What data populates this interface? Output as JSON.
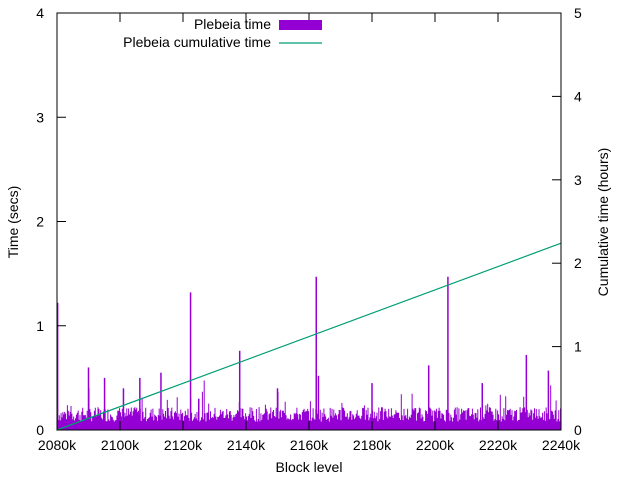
{
  "chart_data": {
    "type": "bar+line",
    "xlabel": "Block level",
    "ylabel": "Time (secs)",
    "y2label": "Cumulative time (hours)",
    "xlim": [
      2080,
      2240
    ],
    "ylim": [
      0,
      4
    ],
    "y2lim": [
      0,
      5
    ],
    "xticks": [
      {
        "value": 2080,
        "label": "2080k"
      },
      {
        "value": 2100,
        "label": "2100k"
      },
      {
        "value": 2120,
        "label": "2120k"
      },
      {
        "value": 2140,
        "label": "2140k"
      },
      {
        "value": 2160,
        "label": "2160k"
      },
      {
        "value": 2180,
        "label": "2180k"
      },
      {
        "value": 2200,
        "label": "2200k"
      },
      {
        "value": 2220,
        "label": "2220k"
      },
      {
        "value": 2240,
        "label": "2240k"
      }
    ],
    "yticks": [
      {
        "value": 0,
        "label": "0"
      },
      {
        "value": 1,
        "label": "1"
      },
      {
        "value": 2,
        "label": "2"
      },
      {
        "value": 3,
        "label": "3"
      },
      {
        "value": 4,
        "label": "4"
      }
    ],
    "y2ticks": [
      {
        "value": 0,
        "label": "0"
      },
      {
        "value": 1,
        "label": "1"
      },
      {
        "value": 2,
        "label": "2"
      },
      {
        "value": 3,
        "label": "3"
      },
      {
        "value": 4,
        "label": "4"
      },
      {
        "value": 5,
        "label": "5"
      }
    ],
    "grid": false,
    "legend_position": "top-left",
    "series": [
      {
        "name": "Plebeia time",
        "type": "bar",
        "axis": "y",
        "color": "#9400D3",
        "baseline_range": [
          0.08,
          0.22
        ],
        "spikes": [
          {
            "x": 2080.2,
            "y": 1.22
          },
          {
            "x": 2090.0,
            "y": 0.6
          },
          {
            "x": 2095.1,
            "y": 0.5
          },
          {
            "x": 2101.1,
            "y": 0.4
          },
          {
            "x": 2106.3,
            "y": 0.5
          },
          {
            "x": 2113.0,
            "y": 0.55
          },
          {
            "x": 2122.4,
            "y": 1.32
          },
          {
            "x": 2125.0,
            "y": 0.3
          },
          {
            "x": 2138.0,
            "y": 0.76
          },
          {
            "x": 2150.0,
            "y": 0.4
          },
          {
            "x": 2162.3,
            "y": 1.47
          },
          {
            "x": 2163.0,
            "y": 0.52
          },
          {
            "x": 2180.0,
            "y": 0.45
          },
          {
            "x": 2198.0,
            "y": 0.62
          },
          {
            "x": 2204.1,
            "y": 1.47
          },
          {
            "x": 2215.0,
            "y": 0.45
          },
          {
            "x": 2229.0,
            "y": 0.72
          },
          {
            "x": 2236.0,
            "y": 0.57
          }
        ]
      },
      {
        "name": "Plebeia cumulative time",
        "type": "line",
        "axis": "y2",
        "color": "#009E73",
        "x": [
          2080,
          2240
        ],
        "y": [
          0,
          2.24
        ]
      }
    ]
  }
}
